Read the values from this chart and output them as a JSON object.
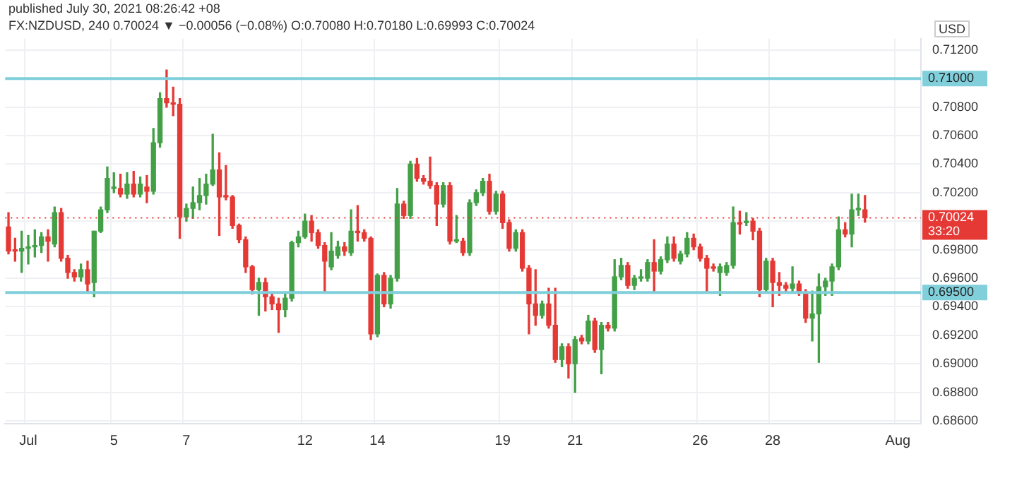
{
  "chart_data": {
    "type": "candlestick",
    "title": "published July 30, 2021 08:26:42 +08",
    "subtitle": "FX:NZDUSD, 240 0.70024 ▼ −0.00056 (−0.08%) O:0.70080 H:0.70180 L:0.69993 C:0.70024",
    "ylabel": "USD",
    "categories": [
      null,
      null,
      null,
      "Jul",
      null,
      null,
      null,
      null,
      null,
      null,
      null,
      null,
      null,
      null,
      null,
      null,
      "5",
      null,
      null,
      null,
      null,
      null,
      null,
      null,
      null,
      null,
      null,
      "7",
      null,
      null,
      null,
      null,
      null,
      null,
      null,
      null,
      null,
      null,
      null,
      null,
      null,
      null,
      null,
      null,
      null,
      "12",
      null,
      null,
      null,
      null,
      null,
      null,
      null,
      null,
      null,
      null,
      "14",
      null,
      null,
      null,
      null,
      null,
      null,
      null,
      null,
      null,
      null,
      null,
      null,
      null,
      null,
      null,
      null,
      null,
      null,
      "19",
      null,
      null,
      null,
      null,
      null,
      null,
      null,
      null,
      null,
      null,
      "21",
      null,
      null,
      null,
      null,
      null,
      null,
      null,
      null,
      null,
      null,
      null,
      null,
      null,
      null,
      null,
      null,
      null,
      null,
      "26",
      null,
      null,
      null,
      null,
      null,
      null,
      null,
      null,
      null,
      null,
      "28",
      null,
      null,
      null,
      null,
      null,
      null,
      null,
      null,
      null,
      null,
      null,
      null,
      null,
      null,
      null,
      null,
      null,
      null,
      "Aug",
      null,
      null,
      null
    ],
    "ohlc": [
      [
        0.6996,
        0.7006,
        0.6977,
        0.6979
      ],
      [
        0.698,
        0.6988,
        0.6972,
        0.6979
      ],
      [
        0.6979,
        0.6993,
        0.6964,
        0.6981
      ],
      [
        0.6981,
        0.699,
        0.697,
        0.6982
      ],
      [
        0.6982,
        0.6994,
        0.6975,
        0.6983
      ],
      [
        0.6983,
        0.6992,
        0.6978,
        0.6989
      ],
      [
        0.6989,
        0.6994,
        0.6972,
        0.6986
      ],
      [
        0.6984,
        0.701,
        0.6982,
        0.7006
      ],
      [
        0.7006,
        0.7009,
        0.6972,
        0.6974
      ],
      [
        0.6974,
        0.6976,
        0.696,
        0.6964
      ],
      [
        0.6964,
        0.6966,
        0.6958,
        0.6961
      ],
      [
        0.6961,
        0.697,
        0.6958,
        0.6966
      ],
      [
        0.6966,
        0.6972,
        0.695,
        0.6956
      ],
      [
        0.6957,
        0.6993,
        0.6947,
        0.6993
      ],
      [
        0.6993,
        0.701,
        0.6992,
        0.7008
      ],
      [
        0.7008,
        0.7038,
        0.7006,
        0.703
      ],
      [
        0.7023,
        0.7034,
        0.702,
        0.7024
      ],
      [
        0.7023,
        0.7033,
        0.7017,
        0.7019
      ],
      [
        0.7019,
        0.7034,
        0.7016,
        0.7026
      ],
      [
        0.7026,
        0.7035,
        0.7017,
        0.7019
      ],
      [
        0.7019,
        0.7031,
        0.7017,
        0.7026
      ],
      [
        0.7024,
        0.7032,
        0.7013,
        0.7021
      ],
      [
        0.7021,
        0.7065,
        0.7019,
        0.7055
      ],
      [
        0.7055,
        0.709,
        0.7052,
        0.7086
      ],
      [
        0.7086,
        0.7106,
        0.708,
        0.7083
      ],
      [
        0.7083,
        0.7094,
        0.7074,
        0.7082
      ],
      [
        0.7082,
        0.7086,
        0.6988,
        0.7003
      ],
      [
        0.7003,
        0.7012,
        0.7,
        0.7009
      ],
      [
        0.7009,
        0.7024,
        0.7002,
        0.7013
      ],
      [
        0.7013,
        0.703,
        0.7008,
        0.7018
      ],
      [
        0.7018,
        0.7033,
        0.7012,
        0.7026
      ],
      [
        0.7026,
        0.7061,
        0.7025,
        0.7036
      ],
      [
        0.7036,
        0.7048,
        0.699,
        0.7017
      ],
      [
        0.7018,
        0.7039,
        0.7015,
        0.7017
      ],
      [
        0.7017,
        0.7018,
        0.6995,
        0.6997
      ],
      [
        0.6997,
        0.6998,
        0.6985,
        0.6987
      ],
      [
        0.6987,
        0.6989,
        0.6964,
        0.6968
      ],
      [
        0.6968,
        0.6969,
        0.6949,
        0.6952
      ],
      [
        0.6952,
        0.696,
        0.6934,
        0.6957
      ],
      [
        0.6957,
        0.696,
        0.6937,
        0.6947
      ],
      [
        0.6947,
        0.695,
        0.6938,
        0.6942
      ],
      [
        0.6942,
        0.6946,
        0.6922,
        0.6938
      ],
      [
        0.6938,
        0.695,
        0.6933,
        0.6946
      ],
      [
        0.6946,
        0.6986,
        0.6944,
        0.6985
      ],
      [
        0.6985,
        0.6993,
        0.6982,
        0.6989
      ],
      [
        0.6989,
        0.7005,
        0.6988,
        0.7
      ],
      [
        0.7,
        0.7004,
        0.6986,
        0.6992
      ],
      [
        0.6992,
        0.6994,
        0.6981,
        0.6983
      ],
      [
        0.6983,
        0.6985,
        0.695,
        0.6972
      ],
      [
        0.6968,
        0.6992,
        0.6966,
        0.6979
      ],
      [
        0.6976,
        0.6986,
        0.6974,
        0.6982
      ],
      [
        0.6982,
        0.6985,
        0.6976,
        0.6979
      ],
      [
        0.6978,
        0.7008,
        0.6976,
        0.6993
      ],
      [
        0.6993,
        0.7011,
        0.6986,
        0.6992
      ],
      [
        0.6992,
        0.6994,
        0.6986,
        0.6988
      ],
      [
        0.6988,
        0.6989,
        0.6917,
        0.6921
      ],
      [
        0.6921,
        0.6963,
        0.6919,
        0.6962
      ],
      [
        0.6962,
        0.6964,
        0.694,
        0.6942
      ],
      [
        0.6942,
        0.6962,
        0.6939,
        0.696
      ],
      [
        0.696,
        0.7023,
        0.6958,
        0.7012
      ],
      [
        0.7012,
        0.7014,
        0.7002,
        0.7004
      ],
      [
        0.7004,
        0.7042,
        0.7002,
        0.704
      ],
      [
        0.704,
        0.7044,
        0.7028,
        0.703
      ],
      [
        0.703,
        0.7032,
        0.7026,
        0.7028
      ],
      [
        0.7028,
        0.7045,
        0.7023,
        0.7025
      ],
      [
        0.7025,
        0.7027,
        0.6997,
        0.7012
      ],
      [
        0.7012,
        0.7027,
        0.701,
        0.7025
      ],
      [
        0.7025,
        0.7027,
        0.6984,
        0.6986
      ],
      [
        0.6986,
        0.7004,
        0.6985,
        0.6987
      ],
      [
        0.6986,
        0.6988,
        0.6976,
        0.6978
      ],
      [
        0.6978,
        0.7015,
        0.6976,
        0.7013
      ],
      [
        0.7013,
        0.7022,
        0.7011,
        0.702
      ],
      [
        0.702,
        0.703,
        0.7018,
        0.7028
      ],
      [
        0.7028,
        0.7033,
        0.7005,
        0.7007
      ],
      [
        0.7007,
        0.7021,
        0.7005,
        0.7019
      ],
      [
        0.7019,
        0.7021,
        0.6995,
        0.6999
      ],
      [
        0.6999,
        0.7001,
        0.6979,
        0.6981
      ],
      [
        0.6981,
        0.6994,
        0.6979,
        0.6992
      ],
      [
        0.6992,
        0.6994,
        0.6965,
        0.6967
      ],
      [
        0.6967,
        0.6969,
        0.6921,
        0.6942
      ],
      [
        0.6942,
        0.6966,
        0.6927,
        0.6934
      ],
      [
        0.6934,
        0.6944,
        0.6932,
        0.6942
      ],
      [
        0.6942,
        0.6953,
        0.6925,
        0.6927
      ],
      [
        0.6927,
        0.6953,
        0.6901,
        0.6903
      ],
      [
        0.6903,
        0.6914,
        0.6898,
        0.6912
      ],
      [
        0.6912,
        0.6914,
        0.689,
        0.69
      ],
      [
        0.69,
        0.6919,
        0.688,
        0.6917
      ],
      [
        0.6918,
        0.692,
        0.6914,
        0.6916
      ],
      [
        0.6916,
        0.6934,
        0.6914,
        0.693
      ],
      [
        0.693,
        0.6932,
        0.6908,
        0.691
      ],
      [
        0.691,
        0.6929,
        0.6893,
        0.6927
      ],
      [
        0.6927,
        0.6929,
        0.6923,
        0.6925
      ],
      [
        0.6925,
        0.6973,
        0.6923,
        0.6961
      ],
      [
        0.6961,
        0.6974,
        0.6959,
        0.6969
      ],
      [
        0.6969,
        0.6971,
        0.6953,
        0.6955
      ],
      [
        0.6955,
        0.6962,
        0.6952,
        0.696
      ],
      [
        0.696,
        0.6966,
        0.6958,
        0.6961
      ],
      [
        0.696,
        0.6973,
        0.6958,
        0.6971
      ],
      [
        0.6971,
        0.6987,
        0.695,
        0.6965
      ],
      [
        0.6965,
        0.6975,
        0.6963,
        0.6973
      ],
      [
        0.6973,
        0.6989,
        0.6971,
        0.6984
      ],
      [
        0.6984,
        0.6989,
        0.6972,
        0.6974
      ],
      [
        0.6972,
        0.6979,
        0.697,
        0.6977
      ],
      [
        0.6977,
        0.6992,
        0.6975,
        0.6988
      ],
      [
        0.6988,
        0.6991,
        0.698,
        0.6982
      ],
      [
        0.6982,
        0.6984,
        0.6972,
        0.6974
      ],
      [
        0.6974,
        0.6976,
        0.695,
        0.6967
      ],
      [
        0.6968,
        0.697,
        0.6965,
        0.6967
      ],
      [
        0.6964,
        0.697,
        0.6948,
        0.6968
      ],
      [
        0.6964,
        0.6971,
        0.6962,
        0.6969
      ],
      [
        0.6969,
        0.701,
        0.6967,
        0.6999
      ],
      [
        0.6999,
        0.7007,
        0.6991,
        0.6998
      ],
      [
        0.6999,
        0.7006,
        0.6997,
        0.7
      ],
      [
        0.7,
        0.7002,
        0.6987,
        0.6993
      ],
      [
        0.6993,
        0.6995,
        0.6947,
        0.6952
      ],
      [
        0.6952,
        0.6974,
        0.695,
        0.6972
      ],
      [
        0.6972,
        0.6974,
        0.694,
        0.6957
      ],
      [
        0.6957,
        0.6964,
        0.6948,
        0.6955
      ],
      [
        0.6955,
        0.6957,
        0.6951,
        0.6953
      ],
      [
        0.6953,
        0.6968,
        0.6951,
        0.6956
      ],
      [
        0.6956,
        0.6958,
        0.6948,
        0.695
      ],
      [
        0.695,
        0.6952,
        0.6929,
        0.6932
      ],
      [
        0.6932,
        0.6951,
        0.6916,
        0.6935
      ],
      [
        0.6935,
        0.6963,
        0.6901,
        0.6954
      ],
      [
        0.6954,
        0.696,
        0.6948,
        0.6958
      ],
      [
        0.6958,
        0.697,
        0.6948,
        0.6968
      ],
      [
        0.6968,
        0.7003,
        0.6966,
        0.6994
      ],
      [
        0.6994,
        0.6999,
        0.6989,
        0.6991
      ],
      [
        0.6991,
        0.7019,
        0.6982,
        0.7008
      ],
      [
        0.7008,
        0.7019,
        0.7004,
        0.7009
      ],
      [
        0.7008,
        0.7018,
        0.69993,
        0.70024
      ],
      null,
      null,
      null,
      null,
      null,
      null,
      null,
      null
    ],
    "colors": [
      "#e53935",
      "#e53935",
      "#43a047",
      "#43a047",
      "#43a047",
      "#43a047",
      "#e53935",
      "#43a047",
      "#e53935",
      "#e53935",
      "#e53935",
      "#43a047",
      "#e53935",
      "#43a047",
      "#43a047",
      "#43a047",
      "#43a047",
      "#e53935",
      "#43a047",
      "#e53935",
      "#43a047",
      "#e53935",
      "#43a047",
      "#43a047",
      "#e53935",
      "#e53935",
      "#e53935",
      "#43a047",
      "#43a047",
      "#43a047",
      "#43a047",
      "#43a047",
      "#e53935",
      "#e53935",
      "#e53935",
      "#e53935",
      "#e53935",
      "#e53935",
      "#43a047",
      "#e53935",
      "#e53935",
      "#e53935",
      "#43a047",
      "#43a047",
      "#43a047",
      "#43a047",
      "#e53935",
      "#e53935",
      "#e53935",
      "#43a047",
      "#43a047",
      "#e53935",
      "#43a047",
      "#e53935",
      "#e53935",
      "#e53935",
      "#43a047",
      "#e53935",
      "#43a047",
      "#43a047",
      "#e53935",
      "#43a047",
      "#e53935",
      "#e53935",
      "#e53935",
      "#e53935",
      "#43a047",
      "#e53935",
      "#43a047",
      "#e53935",
      "#43a047",
      "#43a047",
      "#43a047",
      "#e53935",
      "#43a047",
      "#e53935",
      "#e53935",
      "#43a047",
      "#e53935",
      "#e53935",
      "#e53935",
      "#43a047",
      "#e53935",
      "#e53935",
      "#43a047",
      "#e53935",
      "#43a047",
      "#e53935",
      "#43a047",
      "#e53935",
      "#43a047",
      "#e53935",
      "#43a047",
      "#43a047",
      "#e53935",
      "#43a047",
      "#43a047",
      "#43a047",
      "#e53935",
      "#43a047",
      "#43a047",
      "#e53935",
      "#43a047",
      "#43a047",
      "#e53935",
      "#e53935",
      "#e53935",
      "#e53935",
      "#43a047",
      "#43a047",
      "#43a047",
      "#e53935",
      "#43a047",
      "#e53935",
      "#e53935",
      "#43a047",
      "#e53935",
      "#e53935",
      "#e53935",
      "#43a047",
      "#e53935",
      "#e53935",
      "#43a047",
      "#43a047",
      "#43a047",
      "#43a047",
      "#43a047",
      "#e53935",
      "#43a047",
      "#43a047",
      "#e53935",
      null,
      null,
      null,
      null,
      null,
      null,
      null,
      null
    ],
    "ylim": [
      0.6858,
      0.7128
    ],
    "yticks": [
      {
        "value": 0.686,
        "label": "0.68600"
      },
      {
        "value": 0.688,
        "label": "0.68800"
      },
      {
        "value": 0.69,
        "label": "0.69000"
      },
      {
        "value": 0.692,
        "label": "0.69200"
      },
      {
        "value": 0.694,
        "label": "0.69400"
      },
      {
        "value": 0.696,
        "label": "0.69600"
      },
      {
        "value": 0.698,
        "label": "0.69800"
      },
      {
        "value": 0.7,
        "label": null
      },
      {
        "value": 0.702,
        "label": "0.70200"
      },
      {
        "value": 0.704,
        "label": "0.70400"
      },
      {
        "value": 0.706,
        "label": "0.70600"
      },
      {
        "value": 0.708,
        "label": "0.70800"
      },
      {
        "value": 0.71,
        "label": null
      },
      {
        "value": 0.712,
        "label": "0.71200"
      }
    ],
    "ref_lines": [
      {
        "axis": "y",
        "value": 0.71,
        "label": "0.71000",
        "color": "#80cfdb"
      },
      {
        "axis": "y",
        "value": 0.695,
        "label": "0.69500",
        "color": "#80cfdb"
      },
      {
        "axis": "y",
        "value": 0.70024,
        "label": "0.70024\n33:20",
        "color": "#e53935",
        "line_style": "dotted"
      }
    ],
    "grid": true,
    "legend": false
  }
}
